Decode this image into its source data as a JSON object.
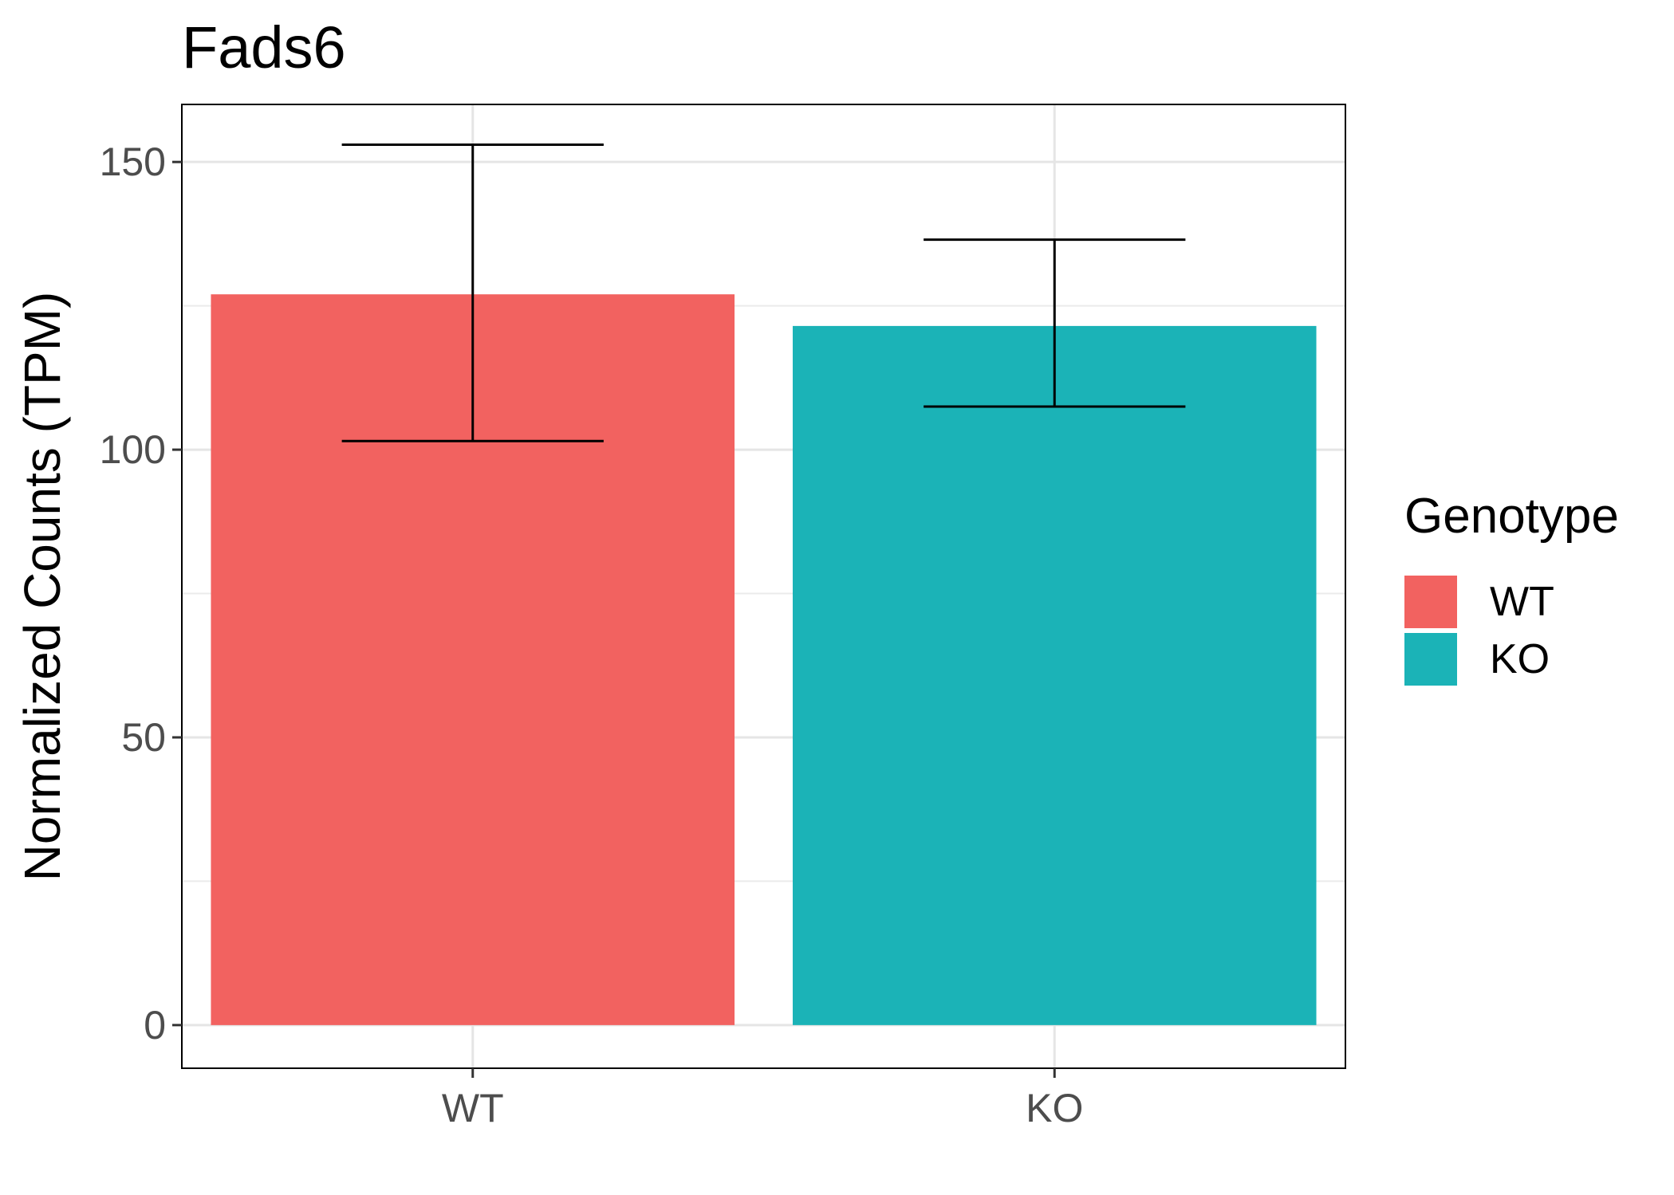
{
  "chart_data": {
    "type": "bar",
    "title": "Fads6",
    "xlabel": "",
    "ylabel": "Normalized Counts (TPM)",
    "categories": [
      "WT",
      "KO"
    ],
    "values": [
      127,
      121.5
    ],
    "error_bars": [
      {
        "category": "WT",
        "lower": 101.5,
        "upper": 153
      },
      {
        "category": "KO",
        "lower": 107.5,
        "upper": 136.5
      }
    ],
    "colors": [
      "#F26260",
      "#1BB3B7"
    ],
    "ylim": [
      -7.5,
      160
    ],
    "yticks": [
      0,
      50,
      100,
      150
    ],
    "ytick_labels": [
      "0",
      "50",
      "100",
      "150"
    ],
    "grid": true,
    "legend": {
      "title": "Genotype",
      "position": "right",
      "entries": [
        {
          "label": "WT",
          "color": "#F26260"
        },
        {
          "label": "KO",
          "color": "#1BB3B7"
        }
      ]
    }
  }
}
